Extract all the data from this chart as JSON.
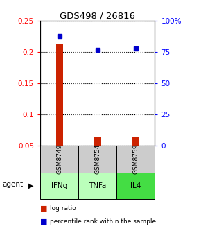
{
  "title": "GDS498 / 26816",
  "samples": [
    "GSM8749",
    "GSM8754",
    "GSM8759"
  ],
  "agents": [
    "IFNg",
    "TNFa",
    "IL4"
  ],
  "log_ratio": [
    0.214,
    0.063,
    0.064
  ],
  "pct_rank_pct": [
    88,
    77,
    78
  ],
  "ylim_left": [
    0.05,
    0.25
  ],
  "ylim_right": [
    0,
    100
  ],
  "yticks_left": [
    0.05,
    0.1,
    0.15,
    0.2,
    0.25
  ],
  "yticks_right": [
    0,
    25,
    50,
    75,
    100
  ],
  "ytick_labels_right": [
    "0",
    "25",
    "50",
    "75",
    "100%"
  ],
  "bar_color": "#cc2200",
  "dot_color": "#0000cc",
  "agent_colors": [
    "#bbffbb",
    "#bbffbb",
    "#44dd44"
  ],
  "sample_bg_color": "#cccccc",
  "legend_bar_label": "log ratio",
  "legend_dot_label": "percentile rank within the sample",
  "bar_width": 0.18
}
